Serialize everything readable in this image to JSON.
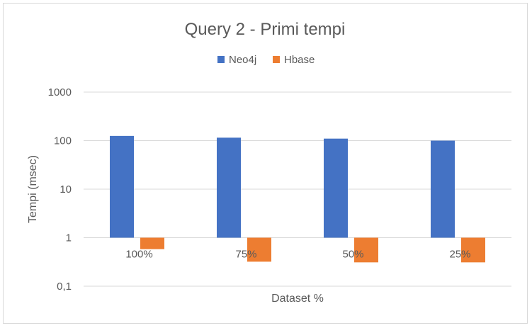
{
  "chart_data": {
    "type": "bar",
    "title": "Query 2 - Primi tempi",
    "xlabel": "Dataset %",
    "ylabel": "Tempi (msec)",
    "yscale": "log",
    "ylim": [
      0.1,
      1000
    ],
    "yticks": [
      0.1,
      1,
      10,
      100,
      1000
    ],
    "ytick_labels": [
      "0,1",
      "1",
      "10",
      "100",
      "1000"
    ],
    "categories": [
      "100%",
      "75%",
      "50%",
      "25%"
    ],
    "series": [
      {
        "name": "Neo4j",
        "color": "#4472c4",
        "values": [
          125,
          115,
          110,
          100
        ]
      },
      {
        "name": "Hbase",
        "color": "#ed7d31",
        "values": [
          0.58,
          0.32,
          0.31,
          0.31
        ]
      }
    ],
    "legend_position": "top",
    "grid": true
  }
}
